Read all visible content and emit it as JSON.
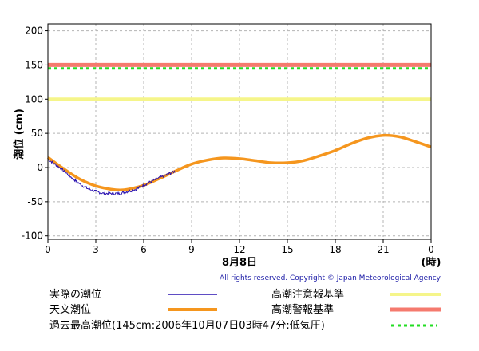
{
  "chart_data": {
    "type": "line",
    "ylabel": "潮位 (cm)",
    "ylim": [
      -105,
      210
    ],
    "yticks": [
      "-100",
      "-50",
      "0",
      "50",
      "100",
      "150",
      "200"
    ],
    "xlim": [
      0,
      24
    ],
    "xticks": [
      "0",
      "3",
      "6",
      "9",
      "12",
      "15",
      "18",
      "21",
      "0"
    ],
    "xunit": "(時)",
    "date_label": "8月8日",
    "copyright": "All rights reserved. Copyright © Japan Meteorological Agency",
    "grid": true,
    "reference_lines": [
      {
        "name": "高潮注意報基準",
        "value": 100,
        "color": "#f5f58a",
        "style": "solid"
      },
      {
        "name": "高潮警報基準",
        "value": 150,
        "color": "#f57a6e",
        "style": "solid"
      },
      {
        "name": "過去最高潮位(145cm:2006年10月07日03時47分:低気圧)",
        "value": 145,
        "color": "#22dd22",
        "style": "dashed"
      }
    ],
    "series": [
      {
        "name": "天文潮位",
        "color": "#f5961e",
        "x": [
          0,
          1,
          2,
          3,
          4,
          4.5,
          5,
          6,
          7,
          8,
          9,
          10,
          11,
          12,
          13,
          14,
          15,
          16,
          17,
          18,
          19,
          20,
          21,
          22,
          23,
          24
        ],
        "y": [
          15,
          -2,
          -17,
          -27,
          -32,
          -33,
          -32,
          -26,
          -16,
          -5,
          5,
          11,
          14,
          13,
          10,
          7,
          7,
          10,
          17,
          25,
          35,
          43,
          47,
          45,
          38,
          30
        ]
      },
      {
        "name": "実際の潮位",
        "color": "#2a12b0",
        "x": [
          0,
          0.5,
          1,
          1.5,
          2,
          2.5,
          3,
          3.5,
          4,
          4.5,
          5,
          5.5,
          6,
          6.5,
          7,
          7.5,
          8
        ],
        "y": [
          12,
          4,
          -5,
          -15,
          -24,
          -31,
          -35,
          -38,
          -38,
          -38,
          -35,
          -32,
          -26,
          -20,
          -15,
          -10,
          -5
        ]
      }
    ]
  },
  "legend": {
    "actual": "実際の潮位",
    "astronomical": "天文潮位",
    "advisory": "高潮注意報基準",
    "warning": "高潮警報基準",
    "record": "過去最高潮位(145cm:2006年10月07日03時47分:低気圧)"
  }
}
